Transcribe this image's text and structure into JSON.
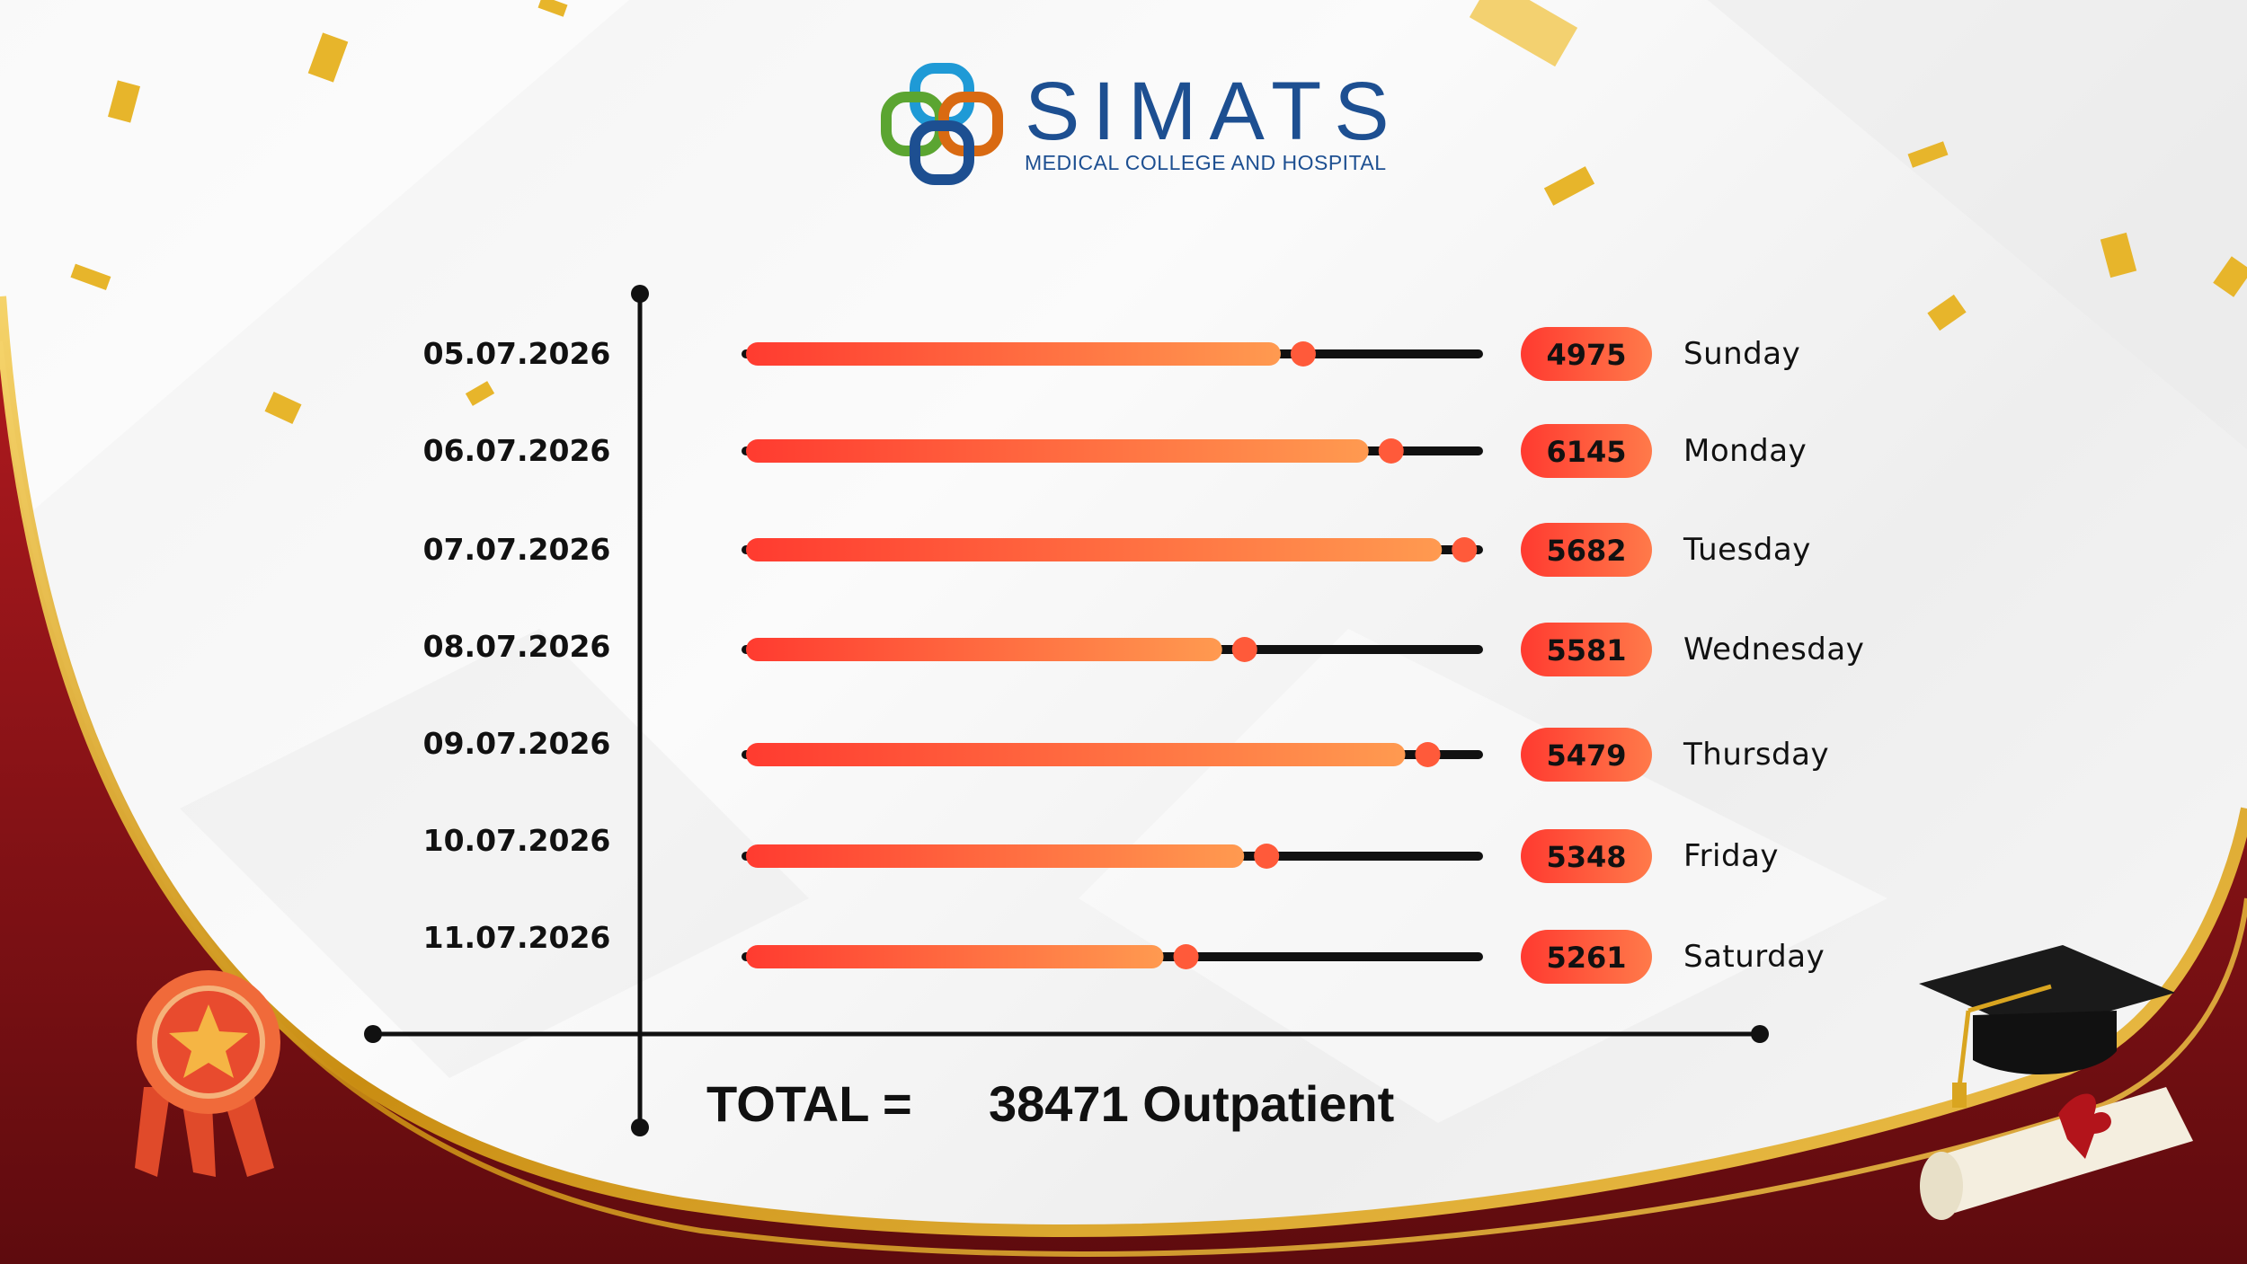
{
  "brand": {
    "name": "SIMATS",
    "subtitle": "MEDICAL COLLEGE AND HOSPITAL"
  },
  "colors": {
    "bar_start": "#ff3b30",
    "bar_end": "#ff9a50",
    "track": "#111111",
    "badge_start": "#ff3a30",
    "badge_end": "#ff7a4a",
    "frame_red": "#8e1418",
    "frame_gold": "#d9a520",
    "logo_blue": "#1d4f91"
  },
  "chart_data": {
    "type": "bar",
    "orientation": "horizontal",
    "categories": [
      "05.07.2026",
      "06.07.2026",
      "07.07.2026",
      "08.07.2026",
      "09.07.2026",
      "10.07.2026",
      "11.07.2026"
    ],
    "values": [
      4975,
      6145,
      5682,
      5581,
      5479,
      5348,
      5261
    ],
    "day_labels": [
      "Sunday",
      "Monday",
      "Tuesday",
      "Wednesday",
      "Thursday",
      "Friday",
      "Saturday"
    ],
    "fill_fraction": [
      0.73,
      0.85,
      0.95,
      0.65,
      0.9,
      0.68,
      0.57
    ],
    "grid": false,
    "legend": "none"
  },
  "total": {
    "label": "TOTAL =",
    "value": "38471 Outpatient"
  }
}
